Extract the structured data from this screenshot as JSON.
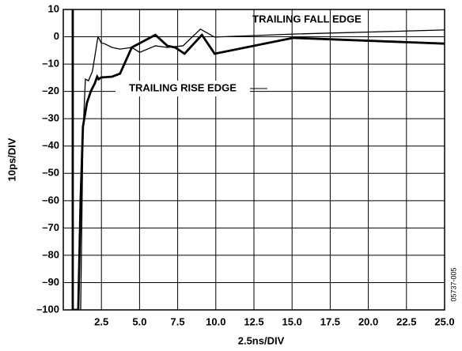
{
  "chart_data": {
    "type": "line",
    "xlabel": "2.5ns/DIV",
    "ylabel": "10ps/DIV",
    "code": "05737-005",
    "xlim": [
      0,
      25
    ],
    "ylim": [
      -100,
      10
    ],
    "xticks": [
      2.5,
      {
        "value": 5,
        "label": "5.0"
      },
      7.5,
      {
        "value": 10,
        "label": "10.0"
      },
      12.5,
      {
        "value": 15,
        "label": "15.0"
      },
      17.5,
      {
        "value": 20,
        "label": "20.0"
      },
      22.5,
      {
        "value": 25,
        "label": "25.0"
      }
    ],
    "yticks": [
      {
        "value": -100,
        "label": "–100"
      },
      {
        "value": -90,
        "label": "–90"
      },
      {
        "value": -80,
        "label": "–80"
      },
      {
        "value": -70,
        "label": "–70"
      },
      {
        "value": -60,
        "label": "–60"
      },
      {
        "value": -50,
        "label": "–50"
      },
      {
        "value": -40,
        "label": "–40"
      },
      {
        "value": -30,
        "label": "–30"
      },
      {
        "value": -20,
        "label": "–20"
      },
      {
        "value": -10,
        "label": "–10"
      },
      0,
      10
    ],
    "grid": true,
    "series": [
      {
        "name": "TRAILING FALL EDGE",
        "color": "#000",
        "width": 1.3,
        "x": [
          1.14,
          1.29,
          1.45,
          1.65,
          1.91,
          2.12,
          2.27,
          2.38,
          2.48,
          2.69,
          3.2,
          3.72,
          4.49,
          5.01,
          6.04,
          6.82,
          7.85,
          8.99,
          9.92,
          15.08,
          25
        ],
        "values": [
          -100,
          -35.8,
          -15.5,
          -16.1,
          -12.6,
          -5.4,
          -0.1,
          -1,
          -2.2,
          -2.5,
          -3.9,
          -4.5,
          -3.9,
          -5.7,
          -3.3,
          -3.9,
          -3.3,
          2.8,
          -0.1,
          1,
          2.5
        ]
      },
      {
        "name": "TRAILING RISE EDGE",
        "color": "#000",
        "width": 2.8,
        "x": [
          0.62,
          0.62,
          0.98,
          1.14,
          1.29,
          1.55,
          1.81,
          2.07,
          2.22,
          2.32,
          2.48,
          3.2,
          3.72,
          4.49,
          6.04,
          6.82,
          7.33,
          7.95,
          9.09,
          9.92,
          15.08,
          25
        ],
        "values": [
          10,
          -100,
          -100,
          -59,
          -32.9,
          -24.2,
          -19.9,
          -17,
          -14.6,
          -15.5,
          -14.9,
          -14.6,
          -13.5,
          -3.9,
          0.7,
          -3.3,
          -3.9,
          -6.2,
          0.7,
          -6.2,
          -0.4,
          -2.5
        ]
      }
    ]
  }
}
